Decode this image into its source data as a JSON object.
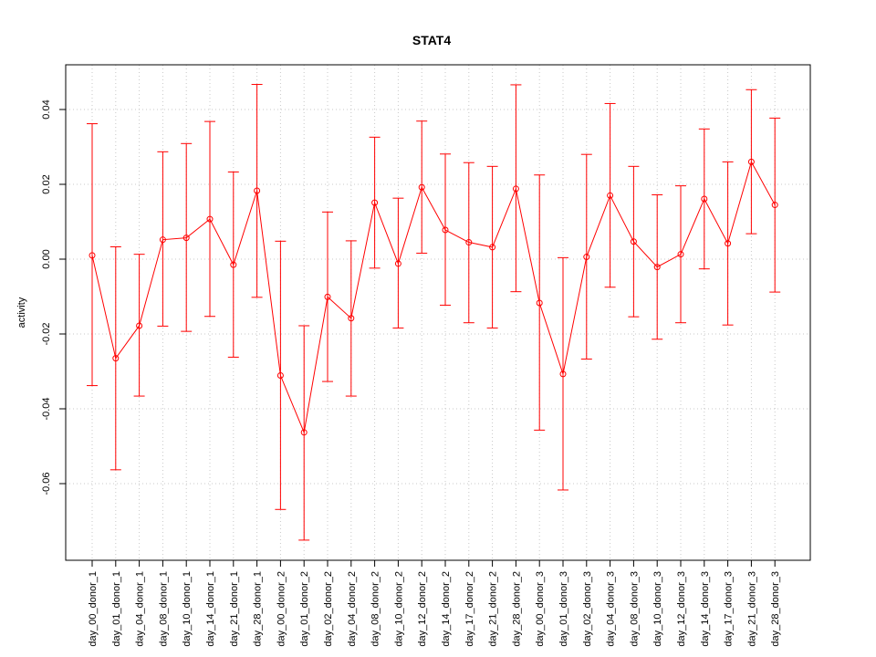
{
  "chart_data": {
    "type": "line",
    "title": "STAT4",
    "xlabel": "",
    "ylabel": "activity",
    "ylim": [
      -0.08,
      0.052
    ],
    "y_ticks": [
      0.04,
      0.02,
      0.0,
      -0.02,
      -0.04,
      -0.06
    ],
    "y_tick_labels": [
      "0.04",
      "0.02",
      "0.00",
      "-0.02",
      "-0.04",
      "-0.06"
    ],
    "grid": true,
    "line_color": "#ff0000",
    "grid_color": "#c8c8c8",
    "categories": [
      "day_00_donor_1",
      "day_01_donor_1",
      "day_04_donor_1",
      "day_08_donor_1",
      "day_10_donor_1",
      "day_14_donor_1",
      "day_21_donor_1",
      "day_28_donor_1",
      "day_00_donor_2",
      "day_01_donor_2",
      "day_02_donor_2",
      "day_04_donor_2",
      "day_08_donor_2",
      "day_10_donor_2",
      "day_12_donor_2",
      "day_14_donor_2",
      "day_17_donor_2",
      "day_21_donor_2",
      "day_28_donor_2",
      "day_00_donor_3",
      "day_01_donor_3",
      "day_02_donor_3",
      "day_04_donor_3",
      "day_08_donor_3",
      "day_10_donor_3",
      "day_12_donor_3",
      "day_14_donor_3",
      "day_17_donor_3",
      "day_21_donor_3",
      "day_28_donor_3"
    ],
    "values": [
      0.001,
      -0.0265,
      -0.0178,
      0.0052,
      0.0057,
      0.0107,
      -0.0015,
      0.0183,
      -0.0311,
      -0.0463,
      -0.0101,
      -0.0158,
      0.0151,
      -0.0012,
      0.0192,
      0.0078,
      0.0045,
      0.0032,
      0.0188,
      -0.0117,
      -0.0307,
      0.0006,
      0.017,
      0.0047,
      -0.0021,
      0.0013,
      0.0161,
      0.0042,
      0.026,
      0.0145
    ],
    "upper": [
      0.0362,
      0.0033,
      0.0013,
      0.0287,
      0.0309,
      0.0368,
      0.0233,
      0.0467,
      0.0048,
      -0.0178,
      0.0126,
      0.0049,
      0.0326,
      0.0163,
      0.0369,
      0.0281,
      0.0258,
      0.0248,
      0.0466,
      0.0225,
      0.0004,
      0.028,
      0.0416,
      0.0248,
      0.0172,
      0.0196,
      0.0348,
      0.026,
      0.0453,
      0.0377
    ],
    "lower": [
      -0.0338,
      -0.0563,
      -0.0366,
      -0.0179,
      -0.0193,
      -0.0153,
      -0.0262,
      -0.0102,
      -0.0669,
      -0.0751,
      -0.0327,
      -0.0366,
      -0.0024,
      -0.0184,
      0.0016,
      -0.0123,
      -0.017,
      -0.0184,
      -0.0087,
      -0.0457,
      -0.0617,
      -0.0267,
      -0.0075,
      -0.0154,
      -0.0214,
      -0.017,
      -0.0026,
      -0.0176,
      0.0068,
      -0.0088
    ]
  }
}
